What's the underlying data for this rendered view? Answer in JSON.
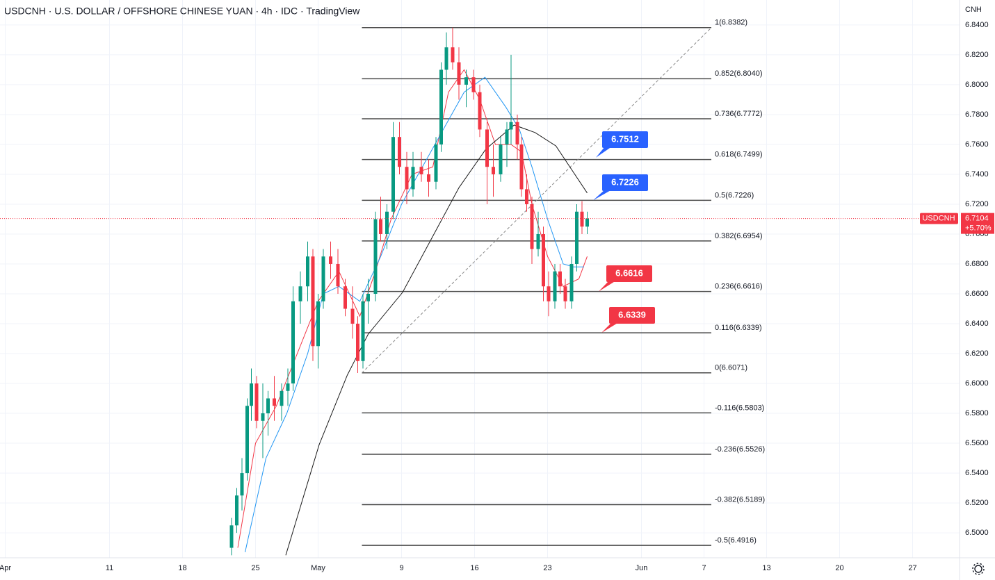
{
  "chart_data": {
    "type": "candlestick",
    "title": "USDCNH · U.S. DOLLAR / OFFSHORE CHINESE YUAN · 4h · IDC · TradingView",
    "currency": "CNH",
    "symbol": "USDCNH",
    "last_price": 6.7104,
    "last_change": "+5.70%",
    "up_color": "#089981",
    "down_color": "#f23645",
    "ylim": [
      6.4833,
      6.8567
    ],
    "yticks": [
      {
        "value": 6.84,
        "label": "6.8400"
      },
      {
        "value": 6.82,
        "label": "6.8200"
      },
      {
        "value": 6.8,
        "label": "6.8000"
      },
      {
        "value": 6.78,
        "label": "6.7800"
      },
      {
        "value": 6.76,
        "label": "6.7600"
      },
      {
        "value": 6.74,
        "label": "6.7400"
      },
      {
        "value": 6.72,
        "label": "6.7200"
      },
      {
        "value": 6.7,
        "label": "6.7000"
      },
      {
        "value": 6.68,
        "label": "6.6800"
      },
      {
        "value": 6.66,
        "label": "6.6600"
      },
      {
        "value": 6.64,
        "label": "6.6400"
      },
      {
        "value": 6.62,
        "label": "6.6200"
      },
      {
        "value": 6.6,
        "label": "6.6000"
      },
      {
        "value": 6.58,
        "label": "6.5800"
      },
      {
        "value": 6.56,
        "label": "6.5600"
      },
      {
        "value": 6.54,
        "label": "6.5400"
      },
      {
        "value": 6.52,
        "label": "6.5200"
      },
      {
        "value": 6.5,
        "label": "6.5000"
      }
    ],
    "xlim": [
      0.5,
      92.5
    ],
    "xticks": [
      {
        "value": 1,
        "label": "Apr"
      },
      11,
      18,
      25,
      {
        "value": 31,
        "label": "May"
      },
      {
        "value": 39,
        "label": "9"
      },
      {
        "value": 46,
        "label": "16"
      },
      {
        "value": 53,
        "label": "23"
      },
      {
        "value": 62,
        "label": "Jun"
      },
      {
        "value": 68,
        "label": "7"
      },
      {
        "value": 74,
        "label": "13"
      },
      {
        "value": 81,
        "label": "20"
      },
      {
        "value": 88,
        "label": "27"
      }
    ],
    "grid": true,
    "candles": {
      "x": [
        22.7,
        23.2,
        23.7,
        24.2,
        24.6,
        25.1,
        25.7,
        26.2,
        26.8,
        27.5,
        28.1,
        28.6,
        29.3,
        30.0,
        30.5,
        31.0,
        31.5,
        32.2,
        32.9,
        33.6,
        34.3,
        34.8,
        35.3,
        35.8,
        36.5,
        37.0,
        37.6,
        38.2,
        38.8,
        39.5,
        40.1,
        40.9,
        41.6,
        42.3,
        42.8,
        43.3,
        43.9,
        44.5,
        45.2,
        45.9,
        46.5,
        47.2,
        47.8,
        48.5,
        49.1,
        49.5,
        50.1,
        50.5,
        51.0,
        51.5,
        52.1,
        52.6,
        53.1,
        53.7,
        54.2,
        54.7,
        55.3,
        55.8,
        56.3,
        56.8
      ],
      "open": [
        6.49,
        6.505,
        6.525,
        6.54,
        6.585,
        6.6,
        6.575,
        6.58,
        6.59,
        6.585,
        6.595,
        6.6,
        6.655,
        6.665,
        6.685,
        6.625,
        6.655,
        6.685,
        6.68,
        6.665,
        6.65,
        6.64,
        6.615,
        6.655,
        6.66,
        6.71,
        6.7,
        6.715,
        6.765,
        6.745,
        6.73,
        6.745,
        6.74,
        6.735,
        6.76,
        6.81,
        6.825,
        6.815,
        6.8,
        6.805,
        6.795,
        6.77,
        6.745,
        6.74,
        6.76,
        6.77,
        6.775,
        6.76,
        6.73,
        6.72,
        6.69,
        6.7,
        6.665,
        6.655,
        6.675,
        6.665,
        6.655,
        6.68,
        6.715,
        6.705
      ],
      "high": [
        6.51,
        6.53,
        6.55,
        6.59,
        6.61,
        6.605,
        6.6,
        6.595,
        6.605,
        6.6,
        6.61,
        6.665,
        6.675,
        6.695,
        6.69,
        6.66,
        6.69,
        6.695,
        6.69,
        6.67,
        6.665,
        6.645,
        6.66,
        6.67,
        6.715,
        6.725,
        6.72,
        6.775,
        6.775,
        6.755,
        6.755,
        6.755,
        6.75,
        6.765,
        6.815,
        6.835,
        6.8382,
        6.825,
        6.81,
        6.81,
        6.8,
        6.775,
        6.76,
        6.765,
        6.775,
        6.82,
        6.78,
        6.765,
        6.74,
        6.725,
        6.715,
        6.705,
        6.675,
        6.68,
        6.68,
        6.67,
        6.685,
        6.72,
        6.722,
        6.715
      ],
      "low": [
        6.485,
        6.5,
        6.515,
        6.535,
        6.575,
        6.57,
        6.55,
        6.565,
        6.575,
        6.575,
        6.585,
        6.595,
        6.64,
        6.655,
        6.615,
        6.61,
        6.65,
        6.67,
        6.66,
        6.645,
        6.63,
        6.607,
        6.61,
        6.64,
        6.655,
        6.695,
        6.69,
        6.71,
        6.74,
        6.72,
        6.725,
        6.735,
        6.725,
        6.73,
        6.755,
        6.8,
        6.81,
        6.79,
        6.785,
        6.79,
        6.765,
        6.72,
        6.725,
        6.735,
        6.745,
        6.76,
        6.75,
        6.725,
        6.715,
        6.68,
        6.685,
        6.655,
        6.645,
        6.65,
        6.66,
        6.65,
        6.65,
        6.675,
        6.7,
        6.7
      ],
      "close": [
        6.505,
        6.525,
        6.54,
        6.585,
        6.6,
        6.575,
        6.58,
        6.59,
        6.585,
        6.595,
        6.6,
        6.655,
        6.665,
        6.685,
        6.625,
        6.655,
        6.685,
        6.68,
        6.665,
        6.65,
        6.64,
        6.615,
        6.655,
        6.66,
        6.71,
        6.7,
        6.715,
        6.765,
        6.745,
        6.73,
        6.745,
        6.74,
        6.735,
        6.76,
        6.81,
        6.825,
        6.815,
        6.8,
        6.805,
        6.795,
        6.77,
        6.745,
        6.74,
        6.76,
        6.77,
        6.775,
        6.76,
        6.73,
        6.72,
        6.69,
        6.7,
        6.665,
        6.655,
        6.675,
        6.665,
        6.655,
        6.68,
        6.715,
        6.705,
        6.7104
      ]
    },
    "ma": [
      {
        "color": "#f23645",
        "x": [
          23.3,
          25,
          27,
          29,
          31,
          33,
          35,
          36.5,
          38,
          40,
          42,
          43.5,
          45,
          46.5,
          48,
          49.5,
          50.5,
          51.5,
          53,
          54.5,
          56,
          56.8
        ],
        "values": [
          6.49,
          6.56,
          6.585,
          6.62,
          6.655,
          6.675,
          6.645,
          6.675,
          6.71,
          6.74,
          6.745,
          6.795,
          6.81,
          6.79,
          6.76,
          6.76,
          6.755,
          6.72,
          6.685,
          6.665,
          6.67,
          6.685
        ]
      },
      {
        "color": "#2196f3",
        "x": [
          24,
          26,
          28,
          30,
          31.5,
          33,
          35,
          37,
          39,
          41,
          43,
          45,
          47,
          49,
          50.3,
          51.5,
          53,
          54.5,
          55.5,
          56.5
        ],
        "values": [
          6.487,
          6.55,
          6.58,
          6.62,
          6.66,
          6.665,
          6.655,
          6.685,
          6.72,
          6.745,
          6.77,
          6.795,
          6.805,
          6.785,
          6.77,
          6.745,
          6.71,
          6.68,
          6.678,
          6.678
        ]
      },
      {
        "color": "#1a1a1a",
        "x": [
          27.9,
          31.1,
          33.8,
          35.8,
          39.1,
          41.8,
          44.5,
          47.1,
          49.8,
          51.8,
          53.8,
          56.8
        ],
        "values": [
          6.485,
          6.559,
          6.6056,
          6.633,
          6.661,
          6.696,
          6.731,
          6.757,
          6.773,
          6.768,
          6.759,
          6.7275
        ]
      }
    ],
    "fib": {
      "x_range": [
        35.2,
        68.7
      ],
      "levels": [
        {
          "value": 6.8382,
          "label": "1(6.8382)"
        },
        {
          "value": 6.804,
          "label": "0.852(6.8040)"
        },
        {
          "value": 6.7772,
          "label": "0.736(6.7772)"
        },
        {
          "value": 6.7499,
          "label": "0.618(6.7499)"
        },
        {
          "value": 6.7226,
          "label": "0.5(6.7226)"
        },
        {
          "value": 6.6954,
          "label": "0.382(6.6954)"
        },
        {
          "value": 6.6616,
          "label": "0.236(6.6616)"
        },
        {
          "value": 6.6339,
          "label": "0.116(6.6339)"
        },
        {
          "value": 6.6071,
          "label": "0(6.6071)"
        },
        {
          "value": 6.5803,
          "label": "-0.116(6.5803)"
        },
        {
          "value": 6.5526,
          "label": "-0.236(6.5526)"
        },
        {
          "value": 6.5189,
          "label": "-0.382(6.5189)"
        },
        {
          "value": 6.4916,
          "label": "-0.5(6.4916)"
        }
      ]
    },
    "callouts": [
      {
        "text": 6.7512,
        "color": "#2962ff"
      },
      {
        "text": 6.7226,
        "color": "#2962ff"
      },
      {
        "text": 6.6616,
        "color": "#f23645"
      },
      {
        "text": 6.6339,
        "color": "#f23645"
      }
    ]
  }
}
